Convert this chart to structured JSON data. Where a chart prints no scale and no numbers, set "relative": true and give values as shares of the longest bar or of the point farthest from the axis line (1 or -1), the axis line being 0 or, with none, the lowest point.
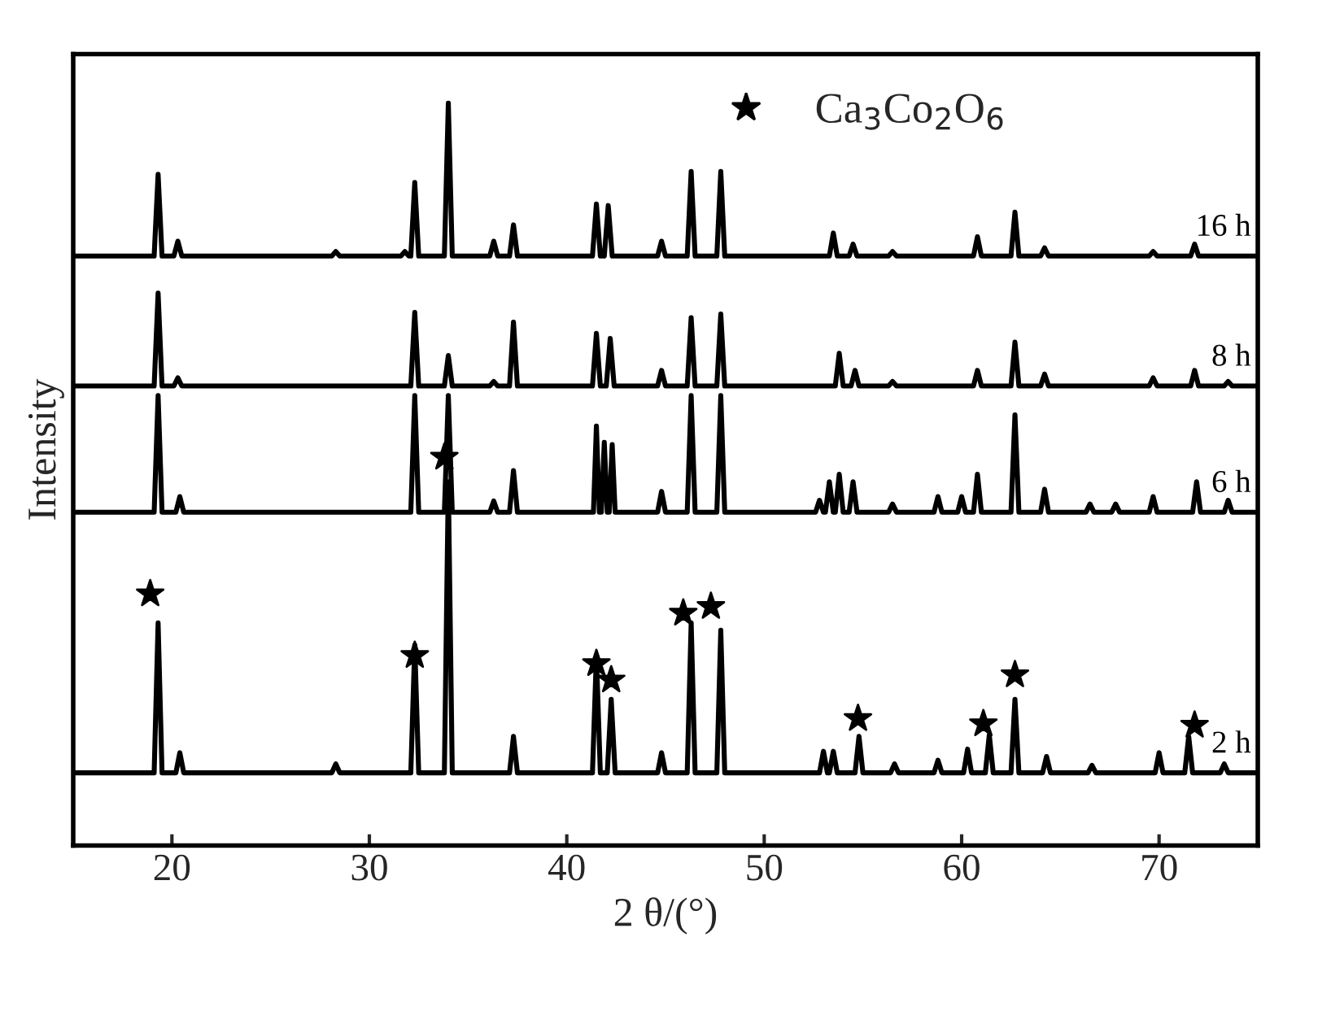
{
  "chart_data": {
    "type": "line",
    "relative": true,
    "xlabel": "2 θ/(°)",
    "ylabel": "Intensity",
    "xlim": [
      15,
      75
    ],
    "xticks": [
      20,
      30,
      40,
      50,
      60,
      70
    ],
    "tick_labels": "x",
    "grid": false,
    "legend": "top right",
    "series": [
      {
        "name": "16 h",
        "color": "#000000",
        "x": [
          15,
          19.1,
          19.3,
          19.5,
          20.1,
          20.3,
          20.5,
          28.1,
          28.3,
          28.5,
          31.6,
          31.8,
          32.0,
          32.1,
          32.3,
          32.5,
          33.8,
          34.0,
          34.2,
          36.1,
          36.3,
          36.5,
          37.1,
          37.3,
          37.5,
          41.3,
          41.5,
          41.7,
          41.9,
          42.1,
          42.3,
          44.6,
          44.8,
          45.0,
          46.1,
          46.3,
          46.5,
          47.6,
          47.8,
          48.0,
          53.3,
          53.5,
          53.7,
          54.3,
          54.5,
          54.7,
          56.3,
          56.5,
          56.7,
          60.6,
          60.8,
          61.0,
          62.5,
          62.7,
          62.9,
          64.0,
          64.2,
          64.4,
          69.5,
          69.7,
          69.9,
          71.6,
          71.8,
          72.0,
          75
        ],
        "values": [
          0.794,
          0.794,
          0.904,
          0.794,
          0.794,
          0.814,
          0.794,
          0.794,
          0.8,
          0.794,
          0.794,
          0.8,
          0.794,
          0.794,
          0.893,
          0.794,
          0.794,
          1.0,
          0.794,
          0.794,
          0.814,
          0.794,
          0.794,
          0.836,
          0.794,
          0.794,
          0.864,
          0.794,
          0.794,
          0.862,
          0.794,
          0.794,
          0.814,
          0.794,
          0.794,
          0.908,
          0.794,
          0.794,
          0.908,
          0.794,
          0.794,
          0.825,
          0.794,
          0.794,
          0.81,
          0.794,
          0.794,
          0.8,
          0.794,
          0.794,
          0.82,
          0.794,
          0.794,
          0.853,
          0.794,
          0.794,
          0.805,
          0.794,
          0.794,
          0.8,
          0.794,
          0.794,
          0.81,
          0.794,
          0.794
        ]
      },
      {
        "name": "8 h",
        "color": "#000000",
        "x": [
          15,
          19.1,
          19.3,
          19.5,
          20.1,
          20.3,
          20.5,
          32.1,
          32.3,
          32.5,
          33.8,
          34.0,
          34.2,
          36.1,
          36.3,
          36.5,
          37.1,
          37.3,
          37.5,
          41.3,
          41.5,
          41.7,
          42.0,
          42.2,
          42.4,
          44.6,
          44.8,
          45.0,
          46.1,
          46.3,
          46.5,
          47.6,
          47.8,
          48.0,
          53.6,
          53.8,
          54.0,
          54.4,
          54.6,
          54.8,
          56.3,
          56.5,
          56.7,
          60.6,
          60.8,
          61.0,
          62.5,
          62.7,
          62.9,
          64.0,
          64.2,
          64.4,
          69.5,
          69.7,
          69.9,
          71.6,
          71.8,
          72.0,
          73.3,
          73.5,
          73.7,
          75
        ],
        "values": [
          0.619,
          0.619,
          0.744,
          0.619,
          0.619,
          0.63,
          0.619,
          0.619,
          0.718,
          0.619,
          0.619,
          0.66,
          0.619,
          0.619,
          0.625,
          0.619,
          0.619,
          0.705,
          0.619,
          0.619,
          0.69,
          0.619,
          0.619,
          0.683,
          0.619,
          0.619,
          0.64,
          0.619,
          0.619,
          0.711,
          0.619,
          0.619,
          0.716,
          0.619,
          0.619,
          0.663,
          0.619,
          0.619,
          0.64,
          0.619,
          0.619,
          0.625,
          0.619,
          0.619,
          0.64,
          0.619,
          0.619,
          0.678,
          0.619,
          0.619,
          0.635,
          0.619,
          0.619,
          0.63,
          0.619,
          0.619,
          0.64,
          0.619,
          0.619,
          0.625,
          0.619,
          0.619
        ]
      },
      {
        "name": "6 h",
        "color": "#000000",
        "x": [
          15,
          19.1,
          19.3,
          19.5,
          20.2,
          20.4,
          20.6,
          32.1,
          32.3,
          32.5,
          33.8,
          34.0,
          34.2,
          36.1,
          36.3,
          36.5,
          37.1,
          37.3,
          37.5,
          41.35,
          41.5,
          41.65,
          41.75,
          41.9,
          42.05,
          42.15,
          42.3,
          42.45,
          44.6,
          44.8,
          45.0,
          46.1,
          46.3,
          46.5,
          47.6,
          47.8,
          48.0,
          52.6,
          52.8,
          53.0,
          53.1,
          53.3,
          53.5,
          53.6,
          53.8,
          54.0,
          54.3,
          54.5,
          54.7,
          56.3,
          56.5,
          56.7,
          58.6,
          58.8,
          59.0,
          59.8,
          60.0,
          60.2,
          60.6,
          60.8,
          61.0,
          62.5,
          62.7,
          62.9,
          64.0,
          64.2,
          64.4,
          66.3,
          66.5,
          66.7,
          67.6,
          67.8,
          68.0,
          69.5,
          69.7,
          69.9,
          71.7,
          71.9,
          72.1,
          73.3,
          73.5,
          73.7,
          75
        ],
        "values": [
          0.449,
          0.449,
          0.606,
          0.449,
          0.449,
          0.47,
          0.449,
          0.449,
          0.606,
          0.449,
          0.449,
          0.606,
          0.449,
          0.449,
          0.464,
          0.449,
          0.449,
          0.505,
          0.449,
          0.449,
          0.565,
          0.449,
          0.449,
          0.543,
          0.449,
          0.449,
          0.54,
          0.449,
          0.449,
          0.477,
          0.449,
          0.449,
          0.606,
          0.449,
          0.449,
          0.606,
          0.449,
          0.449,
          0.465,
          0.449,
          0.449,
          0.49,
          0.449,
          0.449,
          0.5,
          0.449,
          0.449,
          0.49,
          0.449,
          0.449,
          0.46,
          0.449,
          0.449,
          0.47,
          0.449,
          0.449,
          0.47,
          0.449,
          0.449,
          0.5,
          0.449,
          0.449,
          0.58,
          0.449,
          0.449,
          0.48,
          0.449,
          0.449,
          0.46,
          0.449,
          0.449,
          0.46,
          0.449,
          0.449,
          0.47,
          0.449,
          0.449,
          0.49,
          0.449,
          0.449,
          0.465,
          0.449,
          0.449
        ]
      },
      {
        "name": "2 h",
        "color": "#000000",
        "x": [
          15,
          19.1,
          19.3,
          19.5,
          20.2,
          20.4,
          20.6,
          28.1,
          28.3,
          28.5,
          32.1,
          32.3,
          32.5,
          33.8,
          34.0,
          34.2,
          37.1,
          37.3,
          37.5,
          41.3,
          41.5,
          41.7,
          42.05,
          42.25,
          42.45,
          44.6,
          44.8,
          45.0,
          46.1,
          46.3,
          46.5,
          47.6,
          47.8,
          48.0,
          52.8,
          53.0,
          53.2,
          53.3,
          53.5,
          53.7,
          54.6,
          54.8,
          55.0,
          56.4,
          56.6,
          56.8,
          58.6,
          58.8,
          59.0,
          60.1,
          60.3,
          60.5,
          61.2,
          61.4,
          61.6,
          62.5,
          62.7,
          62.9,
          64.1,
          64.3,
          64.5,
          66.4,
          66.6,
          66.8,
          69.8,
          70.0,
          70.2,
          71.3,
          71.5,
          71.7,
          73.1,
          73.3,
          73.5,
          75
        ],
        "values": [
          0.098,
          0.098,
          0.3,
          0.098,
          0.098,
          0.125,
          0.098,
          0.098,
          0.11,
          0.098,
          0.098,
          0.27,
          0.098,
          0.098,
          0.49,
          0.098,
          0.098,
          0.147,
          0.098,
          0.098,
          0.256,
          0.098,
          0.098,
          0.197,
          0.098,
          0.098,
          0.125,
          0.098,
          0.098,
          0.3,
          0.098,
          0.098,
          0.29,
          0.098,
          0.098,
          0.127,
          0.098,
          0.098,
          0.127,
          0.098,
          0.098,
          0.147,
          0.098,
          0.098,
          0.11,
          0.098,
          0.098,
          0.115,
          0.098,
          0.098,
          0.13,
          0.098,
          0.098,
          0.149,
          0.098,
          0.098,
          0.197,
          0.098,
          0.098,
          0.12,
          0.098,
          0.098,
          0.108,
          0.098,
          0.098,
          0.125,
          0.098,
          0.098,
          0.147,
          0.098,
          0.098,
          0.11,
          0.098,
          0.098
        ]
      },
      {
        "name": "Ca$_{3}$Co$_{2}$O$_{6}$",
        "type": "scatter",
        "marker": "star",
        "color": "#000000",
        "x": [
          18.9,
          32.3,
          33.8,
          41.5,
          42.25,
          45.9,
          47.3,
          54.75,
          61.1,
          62.7,
          71.8
        ],
        "values": [
          0.339,
          0.256,
          0.523,
          0.245,
          0.223,
          0.313,
          0.322,
          0.171,
          0.164,
          0.23,
          0.162
        ]
      }
    ]
  }
}
